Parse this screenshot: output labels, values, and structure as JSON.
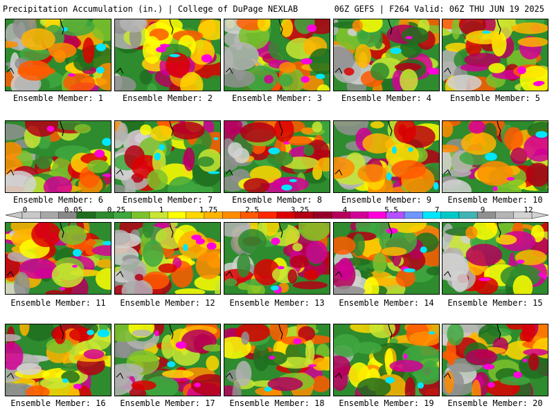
{
  "header": {
    "left_title": "Precipitation Accumulation (in.) | College of DuPage NEXLAB",
    "right_title": "06Z GEFS | F264 Valid: 06Z THU JUN 19 2025"
  },
  "members": [
    {
      "label": "Ensemble Member: 1"
    },
    {
      "label": "Ensemble Member: 2"
    },
    {
      "label": "Ensemble Member: 3"
    },
    {
      "label": "Ensemble Member: 4"
    },
    {
      "label": "Ensemble Member: 5"
    },
    {
      "label": "Ensemble Member: 6"
    },
    {
      "label": "Ensemble Member: 7"
    },
    {
      "label": "Ensemble Member: 8"
    },
    {
      "label": "Ensemble Member: 9"
    },
    {
      "label": "Ensemble Member: 10"
    },
    {
      "label": "Ensemble Member: 11"
    },
    {
      "label": "Ensemble Member: 12"
    },
    {
      "label": "Ensemble Member: 13"
    },
    {
      "label": "Ensemble Member: 14"
    },
    {
      "label": "Ensemble Member: 15"
    },
    {
      "label": "Ensemble Member: 16"
    },
    {
      "label": "Ensemble Member: 17"
    },
    {
      "label": "Ensemble Member: 18"
    },
    {
      "label": "Ensemble Member: 19"
    },
    {
      "label": "Ensemble Member: 20"
    }
  ],
  "colorbar": {
    "tick_labels": [
      "0",
      "0.05",
      "0.25",
      "1",
      "1.75",
      "2.5",
      "3.25",
      "4",
      "5.5",
      "7",
      "9",
      "12"
    ],
    "colors": [
      "#c8c8c8",
      "#a8a8a8",
      "#888888",
      "#1f6e1f",
      "#2e8b2e",
      "#3fa83f",
      "#7cc22c",
      "#c8e632",
      "#ffff00",
      "#ffd700",
      "#ffb400",
      "#ff8c00",
      "#ff5a00",
      "#ff2800",
      "#dc0000",
      "#b40014",
      "#960028",
      "#b4005a",
      "#d20096",
      "#ff00dc",
      "#b450ff",
      "#6e96ff",
      "#00e6ff",
      "#00c8c8",
      "#40b4b4",
      "#909090",
      "#b4b4b4",
      "#d2d2d2"
    ]
  },
  "chart_data": {
    "type": "heatmap",
    "title": "Precipitation Accumulation (in.)",
    "legend_levels": [
      0,
      0.05,
      0.25,
      1,
      1.75,
      2.5,
      3.25,
      4,
      5.5,
      7,
      9,
      12
    ],
    "panels": 20
  }
}
